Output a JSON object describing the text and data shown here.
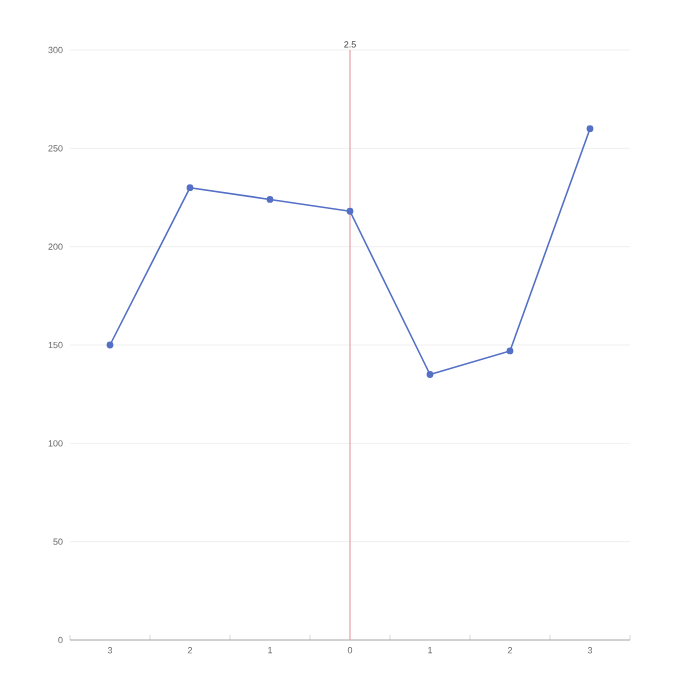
{
  "chart_data": {
    "type": "line",
    "categories": [
      "3",
      "2",
      "1",
      "0",
      "1",
      "2",
      "3"
    ],
    "series": [
      {
        "color": "#5470c6",
        "values": [
          150,
          230,
          224,
          218,
          135,
          147,
          260
        ]
      }
    ],
    "ylim": [
      0,
      300
    ],
    "yticks": [
      0,
      50,
      100,
      150,
      200,
      250,
      300
    ],
    "grid": "y",
    "marker": "circle",
    "line_style": "solid",
    "ref_lines": [
      {
        "axis": "x",
        "value": "0",
        "label": "2.5",
        "color": "#e8a0a8"
      }
    ]
  }
}
